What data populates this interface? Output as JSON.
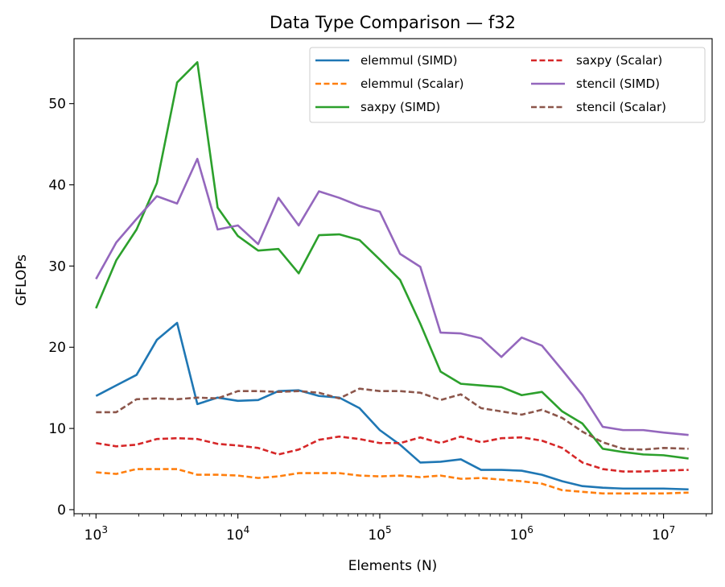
{
  "chart_data": {
    "type": "line",
    "title": "Data Type Comparison — f32",
    "xlabel": "Elements (N)",
    "ylabel": "GFLOPs",
    "xscale": "log",
    "xlim": [
      700,
      22000000
    ],
    "ylim": [
      -0.5,
      58
    ],
    "yticks": [
      0,
      10,
      20,
      30,
      40,
      50
    ],
    "xticks": [
      {
        "value": 1000,
        "base": "10",
        "exp": "3"
      },
      {
        "value": 10000,
        "base": "10",
        "exp": "4"
      },
      {
        "value": 100000,
        "base": "10",
        "exp": "5"
      },
      {
        "value": 1000000,
        "base": "10",
        "exp": "6"
      },
      {
        "value": 10000000,
        "base": "10",
        "exp": "7"
      }
    ],
    "legend_placement": "top-right",
    "legend_columns": 2,
    "grid": false,
    "x": [
      1000,
      1389,
      1931,
      2683,
      3728,
      5179,
      7197,
      10000,
      13895,
      19307,
      26827,
      37276,
      51795,
      71969,
      100000,
      138950,
      193070,
      268270,
      372760,
      517950,
      719690,
      1000000,
      1389500,
      1930700,
      2682700,
      3727600,
      5179500,
      7196900,
      10000000,
      15000000
    ],
    "series": [
      {
        "name": "elemmul (SIMD)",
        "color": "#1f77b4",
        "dash": "solid",
        "values": [
          14.0,
          15.3,
          16.6,
          20.9,
          23.0,
          13.0,
          13.8,
          13.4,
          13.5,
          14.6,
          14.7,
          14.0,
          13.8,
          12.5,
          9.8,
          8.0,
          5.8,
          5.9,
          6.2,
          4.9,
          4.9,
          4.8,
          4.3,
          3.5,
          2.9,
          2.7,
          2.6,
          2.6,
          2.6,
          2.5
        ]
      },
      {
        "name": "elemmul (Scalar)",
        "color": "#ff7f0e",
        "dash": "dashed",
        "values": [
          4.6,
          4.4,
          5.0,
          5.0,
          5.0,
          4.3,
          4.3,
          4.2,
          3.9,
          4.1,
          4.5,
          4.5,
          4.5,
          4.2,
          4.1,
          4.2,
          4.0,
          4.2,
          3.8,
          3.9,
          3.7,
          3.5,
          3.2,
          2.4,
          2.2,
          2.0,
          2.0,
          2.0,
          2.0,
          2.1
        ]
      },
      {
        "name": "saxpy (SIMD)",
        "color": "#2ca02c",
        "dash": "solid",
        "values": [
          24.8,
          30.7,
          34.5,
          40.2,
          52.6,
          55.1,
          37.2,
          33.7,
          31.9,
          32.1,
          29.1,
          33.8,
          33.9,
          33.2,
          30.8,
          28.3,
          22.9,
          17.0,
          15.5,
          15.3,
          15.1,
          14.1,
          14.5,
          12.1,
          10.6,
          7.5,
          7.1,
          6.8,
          6.7,
          6.3
        ]
      },
      {
        "name": "saxpy (Scalar)",
        "color": "#d62728",
        "dash": "dashed",
        "values": [
          8.2,
          7.8,
          8.0,
          8.7,
          8.8,
          8.7,
          8.1,
          7.9,
          7.6,
          6.8,
          7.4,
          8.6,
          9.0,
          8.7,
          8.2,
          8.2,
          8.9,
          8.2,
          9.0,
          8.3,
          8.8,
          8.9,
          8.5,
          7.6,
          5.8,
          5.0,
          4.7,
          4.7,
          4.8,
          4.9
        ]
      },
      {
        "name": "stencil (SIMD)",
        "color": "#9467bd",
        "dash": "solid",
        "values": [
          28.4,
          32.9,
          35.8,
          38.6,
          37.7,
          43.2,
          34.5,
          35.0,
          32.7,
          38.4,
          35.0,
          39.2,
          38.4,
          37.4,
          36.7,
          31.5,
          29.9,
          21.8,
          21.7,
          21.1,
          18.8,
          21.2,
          20.2,
          17.2,
          14.1,
          10.2,
          9.8,
          9.8,
          9.5,
          9.2
        ]
      },
      {
        "name": "stencil (Scalar)",
        "color": "#8c564b",
        "dash": "dashed",
        "values": [
          12.0,
          12.0,
          13.6,
          13.7,
          13.6,
          13.8,
          13.7,
          14.6,
          14.6,
          14.5,
          14.6,
          14.4,
          13.7,
          14.9,
          14.6,
          14.6,
          14.4,
          13.5,
          14.2,
          12.5,
          12.1,
          11.7,
          12.3,
          11.3,
          9.6,
          8.3,
          7.5,
          7.4,
          7.6,
          7.5
        ]
      }
    ]
  }
}
